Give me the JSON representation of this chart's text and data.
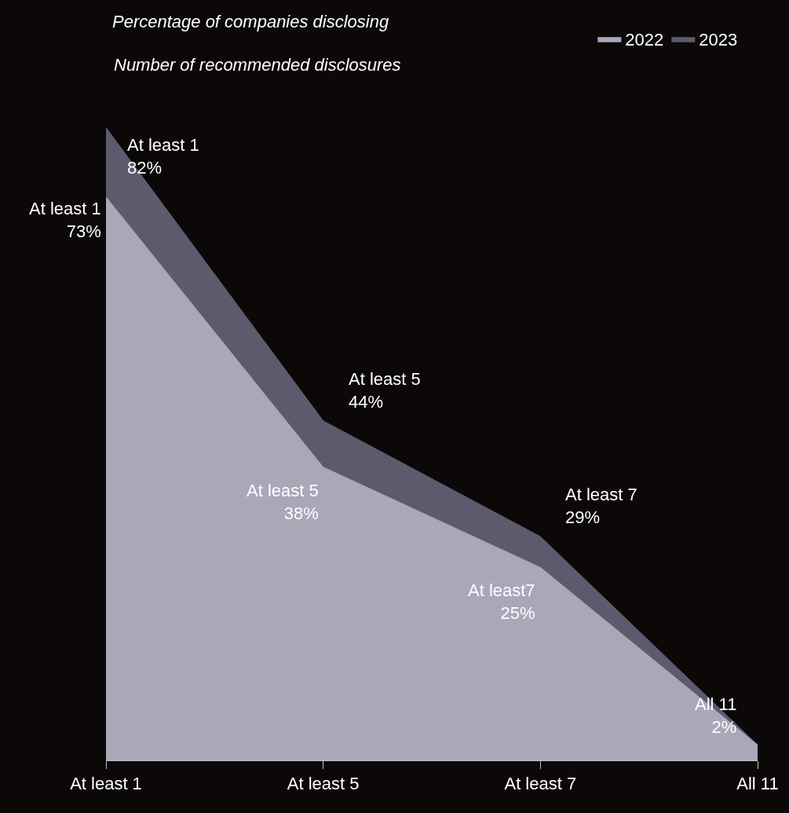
{
  "chart_data": {
    "type": "area",
    "title": "Percentage of companies disclosing",
    "subtitle": "Number of recommended disclosures",
    "categories": [
      "At least 1",
      "At least 5",
      "At least 7",
      "All 11"
    ],
    "series": [
      {
        "name": "2022",
        "color": "#a9a8b9",
        "values": [
          73,
          38,
          25,
          2
        ],
        "value_labels": [
          "At least 1\n73%",
          "At least 5\n38%",
          "At least7\n25%",
          "All 11\n2%"
        ]
      },
      {
        "name": "2023",
        "color": "#5c5b6e",
        "values": [
          82,
          44,
          29,
          2
        ],
        "value_labels": [
          "At least 1\n82%",
          "At least 5\n44%",
          "At least 7\n29%",
          null
        ]
      }
    ],
    "tick_labels": "x",
    "grid": false,
    "legend": "top right",
    "marker": "none",
    "line_style": "solid"
  }
}
